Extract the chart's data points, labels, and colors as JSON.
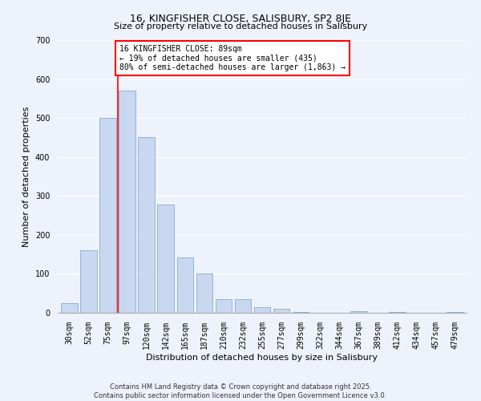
{
  "title": "16, KINGFISHER CLOSE, SALISBURY, SP2 8JE",
  "subtitle": "Size of property relative to detached houses in Salisbury",
  "xlabel": "Distribution of detached houses by size in Salisbury",
  "ylabel": "Number of detached properties",
  "bar_labels": [
    "30sqm",
    "52sqm",
    "75sqm",
    "97sqm",
    "120sqm",
    "142sqm",
    "165sqm",
    "187sqm",
    "210sqm",
    "232sqm",
    "255sqm",
    "277sqm",
    "299sqm",
    "322sqm",
    "344sqm",
    "367sqm",
    "389sqm",
    "412sqm",
    "434sqm",
    "457sqm",
    "479sqm"
  ],
  "bar_values": [
    25,
    160,
    500,
    570,
    450,
    278,
    142,
    100,
    35,
    35,
    14,
    10,
    3,
    0,
    0,
    4,
    0,
    2,
    0,
    0,
    2
  ],
  "bar_color": "#c8d8f0",
  "bar_edge_color": "#8aaad0",
  "vline_color": "red",
  "vline_index": 2.5,
  "ylim": [
    0,
    700
  ],
  "yticks": [
    0,
    100,
    200,
    300,
    400,
    500,
    600,
    700
  ],
  "annotation_line1": "16 KINGFISHER CLOSE: 89sqm",
  "annotation_line2": "← 19% of detached houses are smaller (435)",
  "annotation_line3": "80% of semi-detached houses are larger (1,863) →",
  "annotation_box_color": "white",
  "annotation_box_edge": "red",
  "footer_line1": "Contains HM Land Registry data © Crown copyright and database right 2025.",
  "footer_line2": "Contains public sector information licensed under the Open Government Licence v3.0.",
  "bg_color": "#eef2fb",
  "grid_color": "white",
  "title_fontsize": 9,
  "subtitle_fontsize": 8,
  "axis_label_fontsize": 8,
  "tick_fontsize": 7,
  "annotation_fontsize": 7,
  "footer_fontsize": 6
}
